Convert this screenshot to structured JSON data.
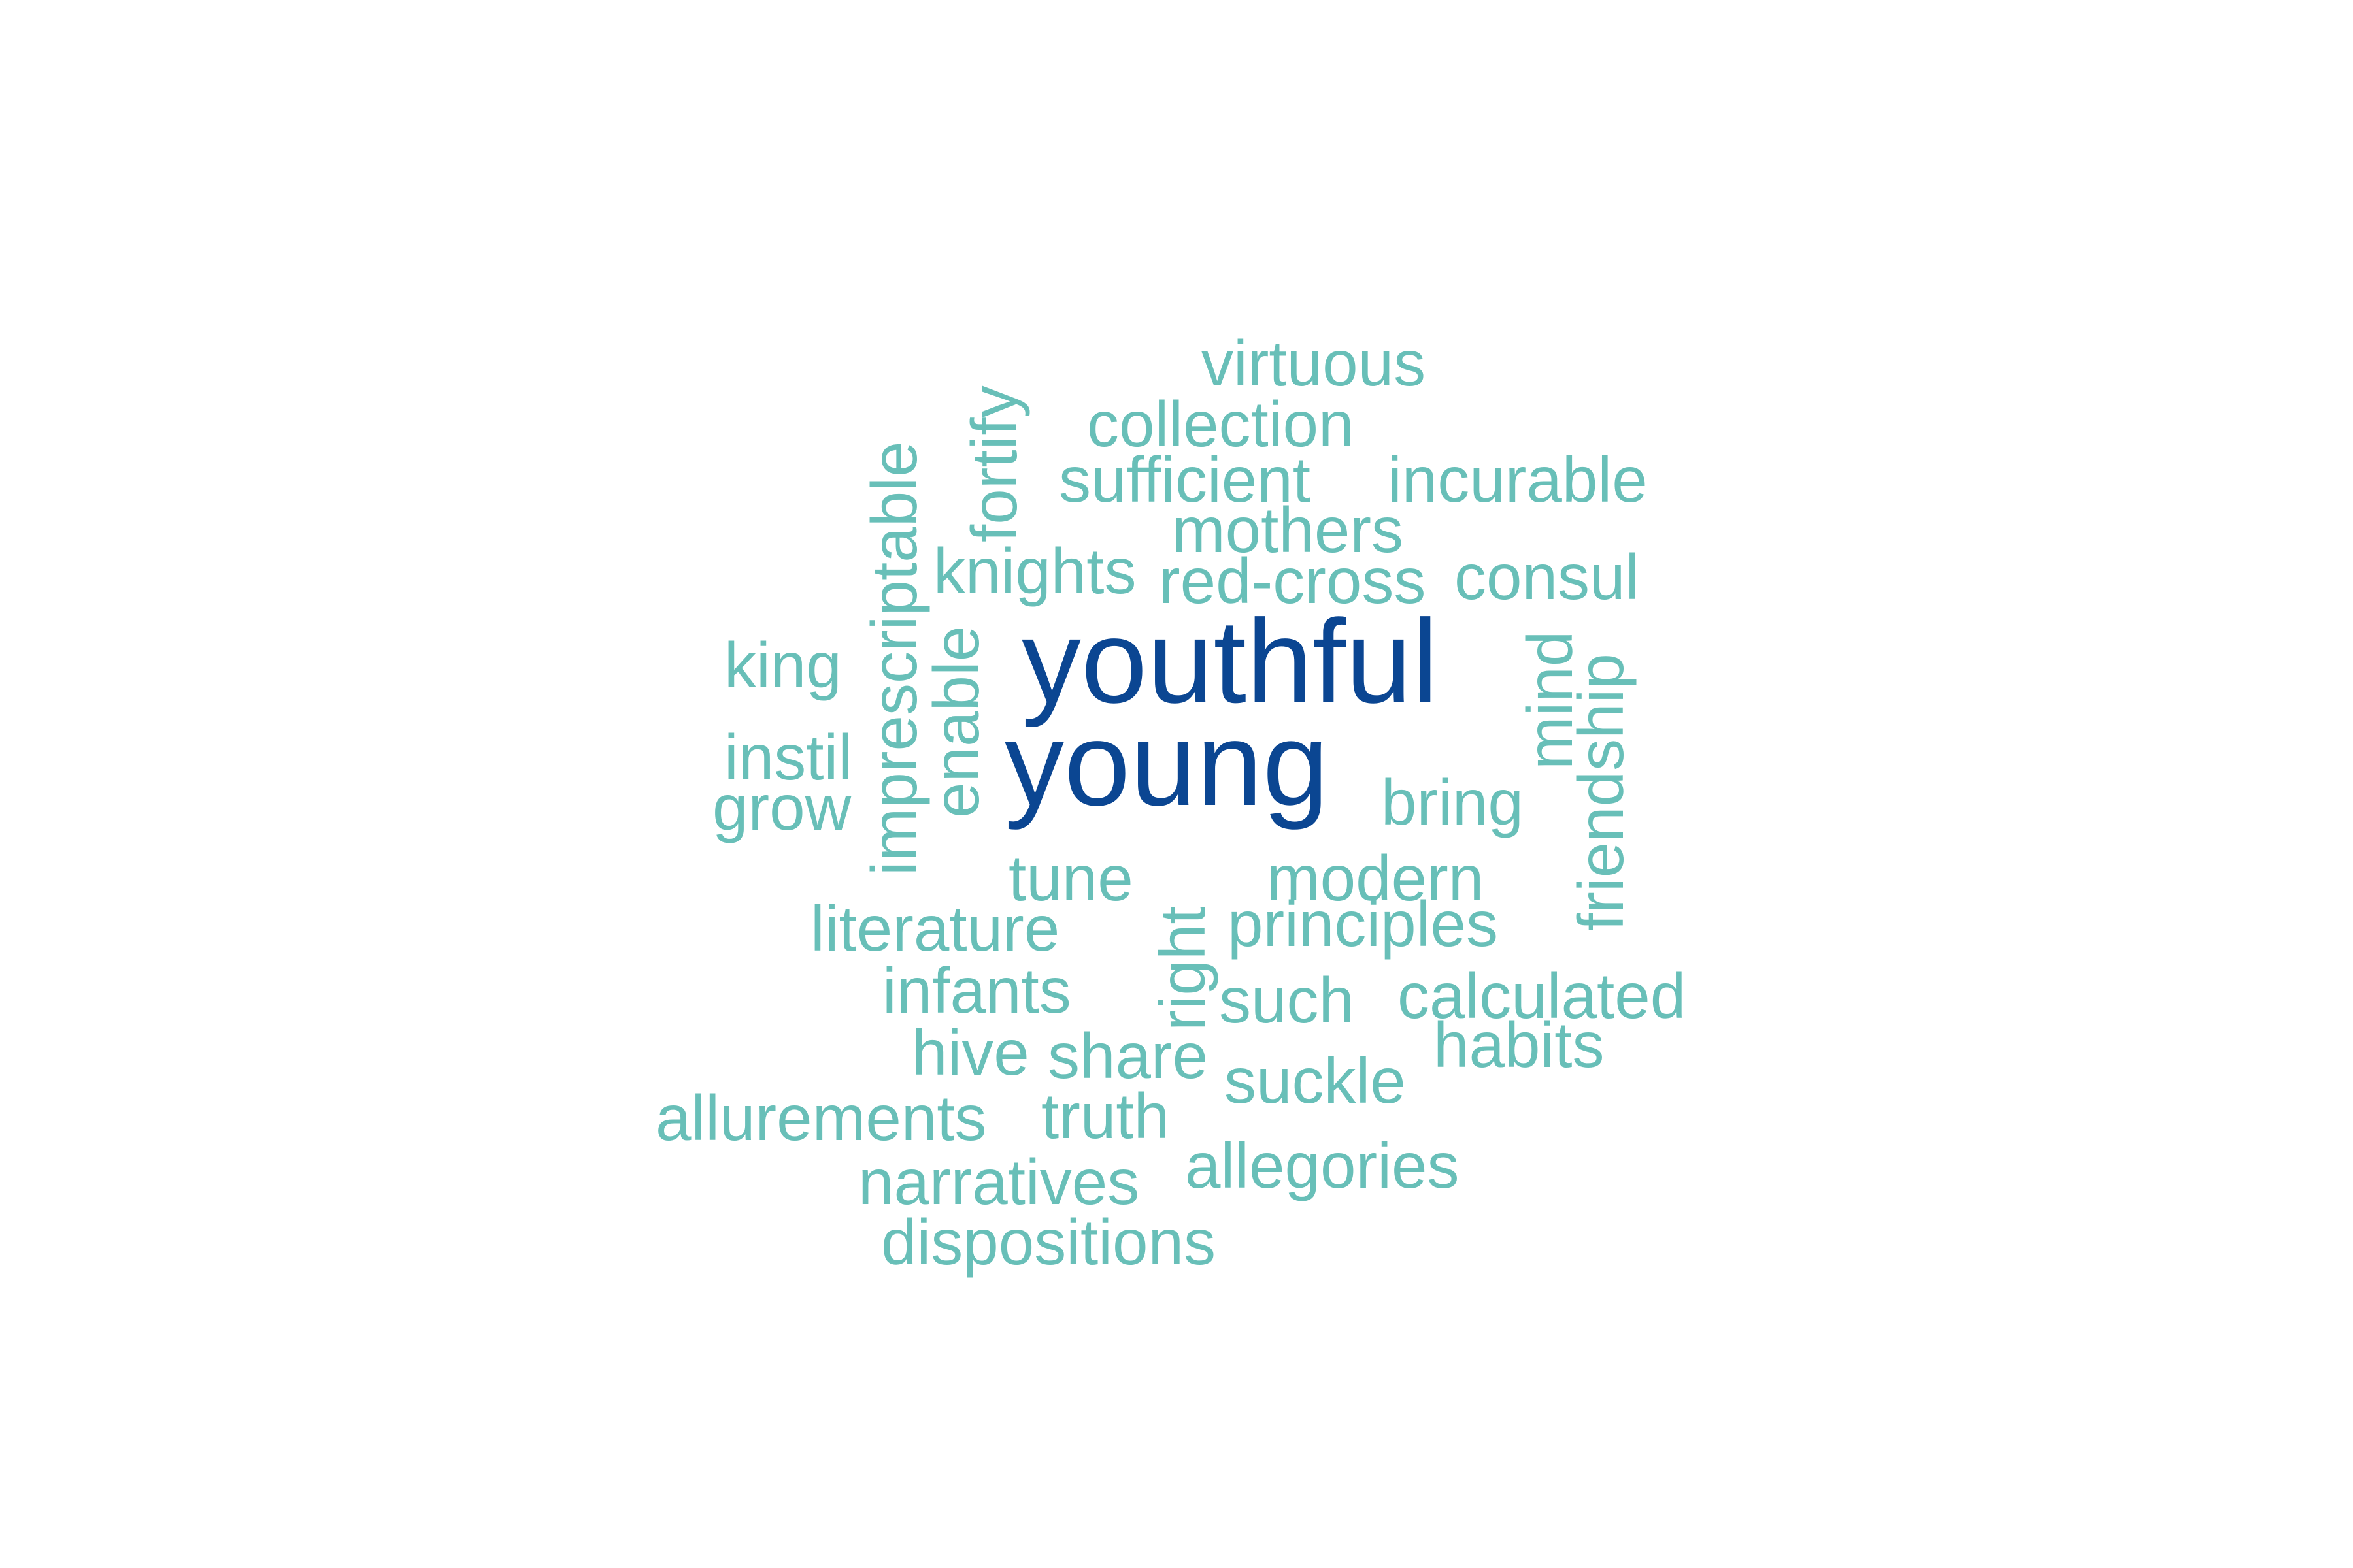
{
  "colors": {
    "background": "#ffffff",
    "primary": "#0b4692",
    "secondary": "#68bfb8"
  },
  "words": [
    {
      "text": "youthful",
      "tier": "primary"
    },
    {
      "text": "young",
      "tier": "primary"
    },
    {
      "text": "virtuous",
      "tier": "secondary"
    },
    {
      "text": "collection",
      "tier": "secondary"
    },
    {
      "text": "sufficient",
      "tier": "secondary"
    },
    {
      "text": "incurable",
      "tier": "secondary"
    },
    {
      "text": "mothers",
      "tier": "secondary"
    },
    {
      "text": "knights",
      "tier": "secondary"
    },
    {
      "text": "red-cross",
      "tier": "secondary"
    },
    {
      "text": "consul",
      "tier": "secondary"
    },
    {
      "text": "king",
      "tier": "secondary"
    },
    {
      "text": "instil",
      "tier": "secondary"
    },
    {
      "text": "grow",
      "tier": "secondary"
    },
    {
      "text": "bring",
      "tier": "secondary"
    },
    {
      "text": "tune",
      "tier": "secondary"
    },
    {
      "text": "modern",
      "tier": "secondary"
    },
    {
      "text": "literature",
      "tier": "secondary"
    },
    {
      "text": "principles",
      "tier": "secondary"
    },
    {
      "text": "infants",
      "tier": "secondary"
    },
    {
      "text": "such",
      "tier": "secondary"
    },
    {
      "text": "calculated",
      "tier": "secondary"
    },
    {
      "text": "hive",
      "tier": "secondary"
    },
    {
      "text": "share",
      "tier": "secondary"
    },
    {
      "text": "habits",
      "tier": "secondary"
    },
    {
      "text": "suckle",
      "tier": "secondary"
    },
    {
      "text": "allurements",
      "tier": "secondary"
    },
    {
      "text": "truth",
      "tier": "secondary"
    },
    {
      "text": "allegories",
      "tier": "secondary"
    },
    {
      "text": "narratives",
      "tier": "secondary"
    },
    {
      "text": "dispositions",
      "tier": "secondary"
    },
    {
      "text": "imprescriptable",
      "tier": "secondary"
    },
    {
      "text": "fortify",
      "tier": "secondary"
    },
    {
      "text": "enable",
      "tier": "secondary"
    },
    {
      "text": "mind",
      "tier": "secondary"
    },
    {
      "text": "friendship",
      "tier": "secondary"
    },
    {
      "text": "right",
      "tier": "secondary"
    }
  ]
}
